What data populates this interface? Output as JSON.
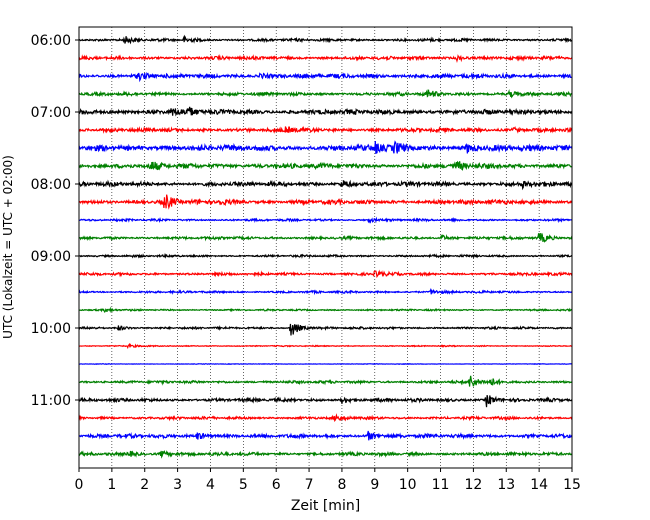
{
  "chart_data": {
    "type": "line",
    "xlabel": "Zeit  [min]",
    "ylabel": "UTC (Lokalzeit = UTC + 02:00)",
    "xlim": [
      0,
      15
    ],
    "xticks": [
      "0",
      "1",
      "2",
      "3",
      "4",
      "5",
      "6",
      "7",
      "8",
      "9",
      "10",
      "11",
      "12",
      "13",
      "14",
      "15"
    ],
    "yticks": [
      "06:00",
      "07:00",
      "08:00",
      "09:00",
      "10:00",
      "11:00"
    ],
    "grid_x": true,
    "trace_colors": [
      "#000000",
      "#ff0000",
      "#0000ff",
      "#008000"
    ],
    "traces": [
      {
        "start": "06:00",
        "color": "#000000",
        "amp": 0.25,
        "events": [
          {
            "t": 1.4,
            "a": 0.5
          },
          {
            "t": 3.2,
            "a": 0.5
          }
        ]
      },
      {
        "start": "06:15",
        "color": "#ff0000",
        "amp": 0.3,
        "events": [
          {
            "t": 11.5,
            "a": 0.4
          }
        ]
      },
      {
        "start": "06:30",
        "color": "#0000ff",
        "amp": 0.4,
        "events": [
          {
            "t": 1.8,
            "a": 0.5
          },
          {
            "t": 5.5,
            "a": 0.4
          }
        ]
      },
      {
        "start": "06:45",
        "color": "#008000",
        "amp": 0.3,
        "events": [
          {
            "t": 10.6,
            "a": 0.6
          },
          {
            "t": 13.1,
            "a": 0.5
          }
        ]
      },
      {
        "start": "07:00",
        "color": "#000000",
        "amp": 0.45,
        "events": [
          {
            "t": 2.8,
            "a": 0.7
          },
          {
            "t": 3.3,
            "a": 0.6
          }
        ]
      },
      {
        "start": "07:15",
        "color": "#ff0000",
        "amp": 0.35,
        "events": [
          {
            "t": 6.3,
            "a": 0.5
          },
          {
            "t": 13.2,
            "a": 0.4
          }
        ]
      },
      {
        "start": "07:30",
        "color": "#0000ff",
        "amp": 0.55,
        "events": [
          {
            "t": 9.0,
            "a": 0.9
          },
          {
            "t": 9.6,
            "a": 0.7
          },
          {
            "t": 11.8,
            "a": 0.7
          }
        ]
      },
      {
        "start": "07:45",
        "color": "#008000",
        "amp": 0.45,
        "events": [
          {
            "t": 2.2,
            "a": 0.6
          },
          {
            "t": 11.5,
            "a": 0.6
          }
        ]
      },
      {
        "start": "08:00",
        "color": "#000000",
        "amp": 0.4,
        "events": [
          {
            "t": 8.0,
            "a": 0.6
          },
          {
            "t": 13.5,
            "a": 0.5
          }
        ]
      },
      {
        "start": "08:15",
        "color": "#ff0000",
        "amp": 0.4,
        "events": [
          {
            "t": 2.6,
            "a": 1.3
          },
          {
            "t": 4.2,
            "a": 0.5
          }
        ]
      },
      {
        "start": "08:30",
        "color": "#0000ff",
        "amp": 0.2,
        "events": [
          {
            "t": 8.8,
            "a": 0.4
          }
        ]
      },
      {
        "start": "08:45",
        "color": "#008000",
        "amp": 0.25,
        "events": [
          {
            "t": 11.0,
            "a": 0.5
          },
          {
            "t": 14.0,
            "a": 0.9
          }
        ]
      },
      {
        "start": "09:00",
        "color": "#000000",
        "amp": 0.2,
        "events": []
      },
      {
        "start": "09:15",
        "color": "#ff0000",
        "amp": 0.25,
        "events": [
          {
            "t": 9.0,
            "a": 0.5
          }
        ]
      },
      {
        "start": "09:30",
        "color": "#0000ff",
        "amp": 0.2,
        "events": [
          {
            "t": 10.7,
            "a": 0.4
          }
        ]
      },
      {
        "start": "09:45",
        "color": "#008000",
        "amp": 0.15,
        "events": [
          {
            "t": 0.8,
            "a": 0.3
          }
        ]
      },
      {
        "start": "10:00",
        "color": "#000000",
        "amp": 0.2,
        "events": [
          {
            "t": 1.2,
            "a": 0.4
          },
          {
            "t": 6.45,
            "a": 1.5
          }
        ]
      },
      {
        "start": "10:15",
        "color": "#ff0000",
        "amp": 0.1,
        "events": [
          {
            "t": 1.5,
            "a": 0.3
          }
        ]
      },
      {
        "start": "10:30",
        "color": "#0000ff",
        "amp": 0.05,
        "events": []
      },
      {
        "start": "10:45",
        "color": "#008000",
        "amp": 0.25,
        "events": [
          {
            "t": 11.9,
            "a": 1.2
          },
          {
            "t": 12.5,
            "a": 0.6
          }
        ]
      },
      {
        "start": "11:00",
        "color": "#000000",
        "amp": 0.3,
        "events": [
          {
            "t": 12.4,
            "a": 1.1
          },
          {
            "t": 8.0,
            "a": 0.5
          }
        ]
      },
      {
        "start": "11:15",
        "color": "#ff0000",
        "amp": 0.25,
        "events": [
          {
            "t": 7.8,
            "a": 0.5
          }
        ]
      },
      {
        "start": "11:30",
        "color": "#0000ff",
        "amp": 0.35,
        "events": [
          {
            "t": 3.6,
            "a": 0.6
          },
          {
            "t": 8.8,
            "a": 0.7
          }
        ]
      },
      {
        "start": "11:45",
        "color": "#008000",
        "amp": 0.3,
        "events": [
          {
            "t": 1.5,
            "a": 0.5
          },
          {
            "t": 2.5,
            "a": 0.5
          }
        ]
      }
    ]
  }
}
